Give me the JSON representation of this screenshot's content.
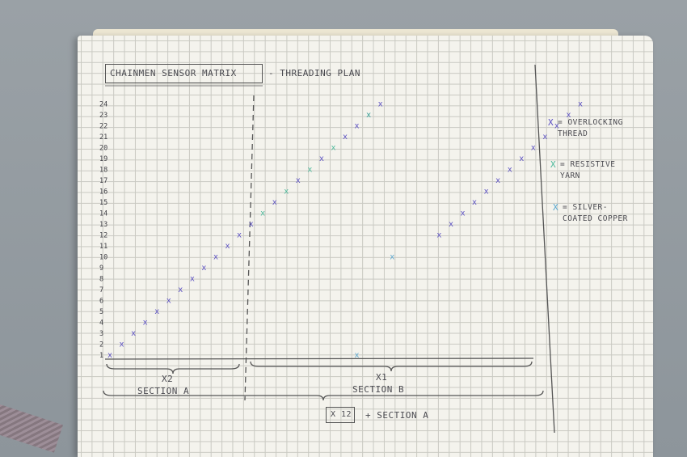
{
  "title": "CHAINMEN SENSOR MATRIX",
  "subtitle": "- THREADING PLAN",
  "rows": [
    "1",
    "2",
    "3",
    "4",
    "5",
    "6",
    "7",
    "8",
    "9",
    "10",
    "11",
    "12",
    "13",
    "14",
    "15",
    "16",
    "17",
    "18",
    "19",
    "20",
    "21",
    "22",
    "23",
    "24"
  ],
  "legend": [
    {
      "mark": "X",
      "text": "= OVERLOCKING THREAD",
      "color": "#5a4fc2",
      "icon": "x-mark-purple"
    },
    {
      "mark": "X",
      "text": "= RESISTIVE YARN",
      "color": "#4bb89a",
      "icon": "x-mark-teal"
    },
    {
      "mark": "X",
      "text": "= SILVER-COATED COPPER",
      "color": "#5aa7cf",
      "icon": "x-mark-blue"
    }
  ],
  "sections": {
    "a": {
      "mult": "X2",
      "name": "SECTION A"
    },
    "b": {
      "mult": "X1",
      "name": "SECTION B"
    },
    "total": {
      "mult": "X 12",
      "rest": "+ SECTION A"
    }
  },
  "chart_data": {
    "type": "scatter",
    "series": [
      {
        "color": "#5a4fc2",
        "points": [
          [
            1,
            1
          ],
          [
            2,
            2
          ],
          [
            3,
            3
          ],
          [
            4,
            4
          ],
          [
            5,
            5
          ],
          [
            6,
            6
          ],
          [
            7,
            7
          ],
          [
            8,
            8
          ],
          [
            9,
            9
          ],
          [
            10,
            10
          ],
          [
            11,
            11
          ],
          [
            12,
            12
          ],
          [
            13,
            13
          ],
          [
            15,
            15
          ],
          [
            17,
            17
          ],
          [
            19,
            19
          ],
          [
            21,
            21
          ],
          [
            22,
            22
          ],
          [
            23,
            23
          ],
          [
            29,
            12
          ],
          [
            30,
            13
          ],
          [
            31,
            14
          ],
          [
            32,
            15
          ],
          [
            33,
            16
          ],
          [
            34,
            17
          ],
          [
            35,
            18
          ],
          [
            36,
            19
          ],
          [
            37,
            20
          ],
          [
            38,
            21
          ],
          [
            39,
            22
          ],
          [
            40,
            23
          ],
          [
            41,
            24
          ],
          [
            24,
            24
          ]
        ]
      },
      {
        "color": "#4bb89a",
        "points": [
          [
            14,
            14
          ],
          [
            16,
            16
          ],
          [
            18,
            18
          ],
          [
            20,
            20
          ],
          [
            23,
            23
          ]
        ]
      },
      {
        "color": "#5aa7cf",
        "points": [
          [
            22,
            1
          ],
          [
            25,
            10
          ]
        ]
      }
    ]
  }
}
